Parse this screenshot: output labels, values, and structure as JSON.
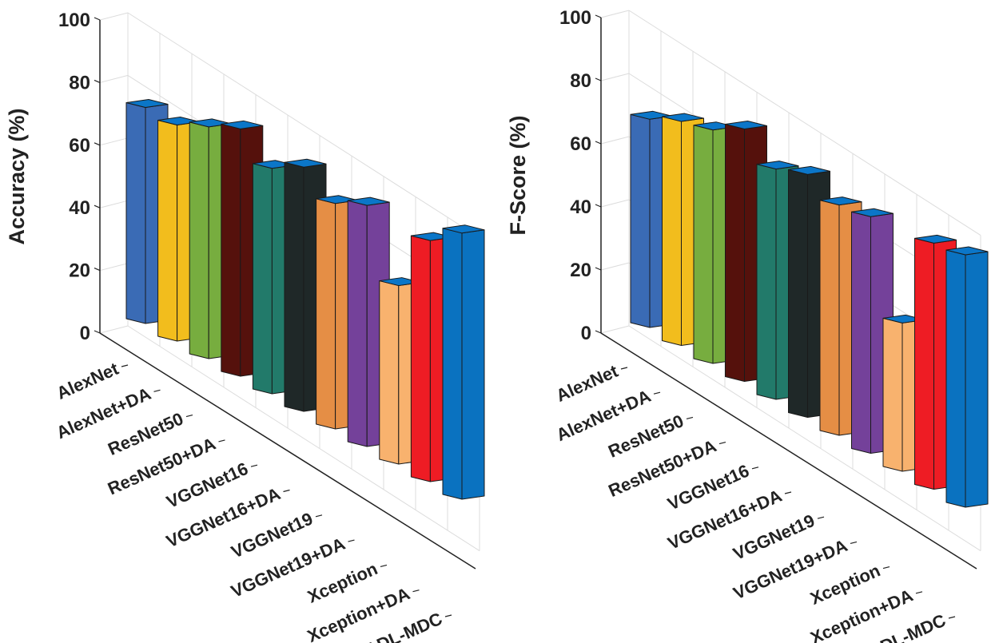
{
  "chart_data": [
    {
      "type": "bar",
      "style": "3d",
      "title": "",
      "xlabel": "",
      "ylabel": "Accuracy (%)",
      "ylim": [
        0,
        100
      ],
      "yticks": [
        "0",
        "20",
        "40",
        "60",
        "80",
        "100"
      ],
      "grid": true,
      "categories": [
        "AlexNet",
        "AlexNet+DA",
        "ResNet50",
        "ResNet50+DA",
        "VGGNet16",
        "VGGNet16+DA",
        "VGGNet19",
        "VGGNet19+DA",
        "Xception",
        "Xception+DA",
        "ADL-MDC"
      ],
      "values": [
        69,
        69,
        74,
        79,
        72,
        78,
        72,
        77,
        57,
        77,
        85
      ]
    },
    {
      "type": "bar",
      "style": "3d",
      "title": "",
      "xlabel": "",
      "ylabel": "F-Score (%)",
      "ylim": [
        0,
        100
      ],
      "yticks": [
        "0",
        "20",
        "40",
        "60",
        "80",
        "100"
      ],
      "grid": true,
      "categories": [
        "AlexNet",
        "AlexNet+DA",
        "ResNet50",
        "ResNet50+DA",
        "VGGNet16",
        "VGGNet16+DA",
        "VGGNet19",
        "VGGNet19+DA",
        "Xception",
        "Xception+DA",
        "ADL-MDC"
      ],
      "values": [
        66,
        71,
        74,
        80,
        73,
        77,
        73,
        75,
        47,
        78,
        80
      ]
    }
  ],
  "colors": {
    "bars": [
      "#3a6bb5",
      "#f2bd1d",
      "#77ad3f",
      "#55110c",
      "#227a6a",
      "#1f2828",
      "#e58e45",
      "#74419a",
      "#f8b26e",
      "#ee1c24",
      "#0a72c0"
    ],
    "bar_top": "#0b76c8",
    "grid": "#dcdcdc",
    "axis": "#222222"
  }
}
